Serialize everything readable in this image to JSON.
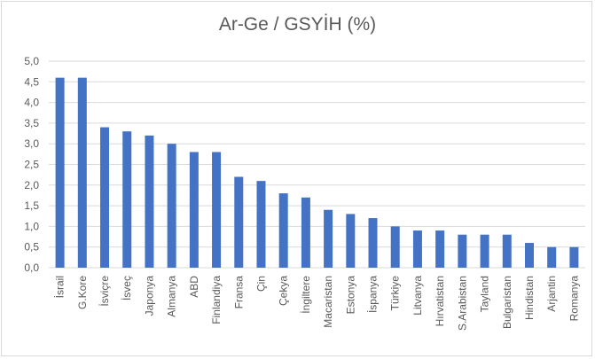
{
  "chart_data": {
    "type": "bar",
    "title": "Ar-Ge / GSYİH (%)",
    "xlabel": "",
    "ylabel": "",
    "ylim": [
      0,
      5
    ],
    "yticks": [
      "0,0",
      "0,5",
      "1,0",
      "1,5",
      "2,0",
      "2,5",
      "3,0",
      "3,5",
      "4,0",
      "4,5",
      "5,0"
    ],
    "categories": [
      "İsrail",
      "G.Kore",
      "İsviçre",
      "İsveç",
      "Japonya",
      "Almanya",
      "ABD",
      "Finlandiya",
      "Fransa",
      "Çin",
      "Çekya",
      "İngiltere",
      "Macaristan",
      "Estonya",
      "İspanya",
      "Türkiye",
      "Litvanya",
      "Hırvatistan",
      "S.Arabistan",
      "Tayland",
      "Bulgaristan",
      "Hindistan",
      "Arjantin",
      "Romanya"
    ],
    "values": [
      4.6,
      4.6,
      3.4,
      3.3,
      3.2,
      3.0,
      2.8,
      2.8,
      2.2,
      2.1,
      1.8,
      1.7,
      1.4,
      1.3,
      1.2,
      1.0,
      0.9,
      0.9,
      0.8,
      0.8,
      0.8,
      0.6,
      0.5,
      0.5
    ],
    "grid": true,
    "legend": "none",
    "colors": {
      "bar": "#4472c4",
      "grid": "#d9d9d9",
      "text": "#595959"
    }
  }
}
